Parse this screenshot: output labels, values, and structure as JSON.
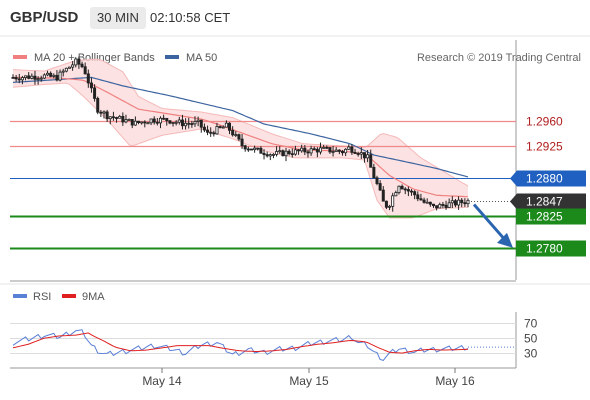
{
  "header": {
    "pair": "GBP/USD",
    "timeframe": "30 MIN",
    "time": "02:10:58 CET"
  },
  "legend": {
    "ma20": "MA 20 + Bollinger Bands",
    "ma50": "MA 50"
  },
  "credit": "Research © 2019 Trading Central",
  "rsi_legend": {
    "rsi": "RSI",
    "ma9": "9MA"
  },
  "colors": {
    "ma20": "#f08080",
    "ma50": "#3c64a0",
    "band": "#fbd8d8",
    "pivot": "#f08a8a",
    "support": "#1b8a1b",
    "last": "#333333",
    "ma50_tag": "#2060c0",
    "candle": "#222222",
    "rsi": "#5a7fd6",
    "ma9": "#e02020",
    "arrow": "#2b65b0"
  },
  "chart_data": [
    {
      "type": "candlestick",
      "ylim": [
        1.2735,
        1.3075
      ],
      "levels": [
        {
          "label": "1.2960",
          "value": 1.296,
          "kind": "pivot"
        },
        {
          "label": "1.2925",
          "value": 1.2925,
          "kind": "pivot"
        },
        {
          "label": "1.2880",
          "value": 1.288,
          "kind": "ma50"
        },
        {
          "label": "1.2847",
          "value": 1.2847,
          "kind": "last"
        },
        {
          "label": "1.2825",
          "value": 1.2825,
          "kind": "support"
        },
        {
          "label": "1.2780",
          "value": 1.278,
          "kind": "support"
        }
      ],
      "price_path": [
        [
          0,
          1.3022
        ],
        [
          10,
          1.3023
        ],
        [
          20,
          1.3024
        ],
        [
          28,
          1.3022
        ],
        [
          32,
          1.303
        ],
        [
          40,
          1.3044
        ],
        [
          45,
          1.3036
        ],
        [
          50,
          1.3003
        ],
        [
          54,
          1.2977
        ],
        [
          60,
          1.2968
        ],
        [
          70,
          1.2962
        ],
        [
          78,
          1.2957
        ],
        [
          88,
          1.2962
        ],
        [
          98,
          1.2962
        ],
        [
          108,
          1.2957
        ],
        [
          118,
          1.2957
        ],
        [
          124,
          1.2942
        ],
        [
          130,
          1.2948
        ],
        [
          136,
          1.2953
        ],
        [
          140,
          1.2943
        ],
        [
          146,
          1.2926
        ],
        [
          156,
          1.2918
        ],
        [
          166,
          1.2913
        ],
        [
          176,
          1.2916
        ],
        [
          186,
          1.2918
        ],
        [
          196,
          1.292
        ],
        [
          206,
          1.2918
        ],
        [
          210,
          1.2917
        ],
        [
          214,
          1.2922
        ],
        [
          220,
          1.2917
        ],
        [
          226,
          1.2908
        ],
        [
          229,
          1.2887
        ],
        [
          233,
          1.2865
        ],
        [
          236,
          1.2845
        ],
        [
          239,
          1.2838
        ],
        [
          242,
          1.2854
        ],
        [
          246,
          1.2871
        ],
        [
          250,
          1.2864
        ],
        [
          256,
          1.2856
        ],
        [
          262,
          1.2845
        ],
        [
          268,
          1.2838
        ],
        [
          276,
          1.2842
        ],
        [
          283,
          1.2844
        ],
        [
          290,
          1.2847
        ]
      ],
      "ma20_path": [
        [
          0,
          1.3022
        ],
        [
          30,
          1.3021
        ],
        [
          45,
          1.3018
        ],
        [
          60,
          1.3001
        ],
        [
          80,
          1.2977
        ],
        [
          100,
          1.297
        ],
        [
          120,
          1.2963
        ],
        [
          130,
          1.2956
        ],
        [
          145,
          1.2944
        ],
        [
          165,
          1.2928
        ],
        [
          185,
          1.2919
        ],
        [
          210,
          1.2918
        ],
        [
          225,
          1.2913
        ],
        [
          240,
          1.2883
        ],
        [
          255,
          1.2864
        ],
        [
          270,
          1.2855
        ],
        [
          290,
          1.2853
        ]
      ],
      "upper_band": [
        [
          0,
          1.3033
        ],
        [
          20,
          1.3031
        ],
        [
          40,
          1.3046
        ],
        [
          55,
          1.3048
        ],
        [
          70,
          1.303
        ],
        [
          80,
          1.2995
        ],
        [
          95,
          1.2978
        ],
        [
          120,
          1.2973
        ],
        [
          140,
          1.2965
        ],
        [
          165,
          1.2942
        ],
        [
          185,
          1.2928
        ],
        [
          210,
          1.2925
        ],
        [
          225,
          1.2923
        ],
        [
          235,
          1.2943
        ],
        [
          245,
          1.2937
        ],
        [
          260,
          1.2908
        ],
        [
          275,
          1.2888
        ],
        [
          290,
          1.2868
        ]
      ],
      "lower_band": [
        [
          0,
          1.3008
        ],
        [
          20,
          1.3012
        ],
        [
          35,
          1.3014
        ],
        [
          45,
          1.2995
        ],
        [
          60,
          1.2962
        ],
        [
          75,
          1.2924
        ],
        [
          95,
          1.294
        ],
        [
          120,
          1.2949
        ],
        [
          140,
          1.2935
        ],
        [
          160,
          1.2918
        ],
        [
          180,
          1.2908
        ],
        [
          210,
          1.2908
        ],
        [
          224,
          1.2905
        ],
        [
          232,
          1.2848
        ],
        [
          240,
          1.2823
        ],
        [
          255,
          1.2823
        ],
        [
          270,
          1.2836
        ],
        [
          290,
          1.2838
        ]
      ],
      "ma50_path": [
        [
          0,
          1.3015
        ],
        [
          50,
          1.3022
        ],
        [
          70,
          1.301
        ],
        [
          100,
          1.2996
        ],
        [
          140,
          1.2975
        ],
        [
          160,
          1.2956
        ],
        [
          190,
          1.2942
        ],
        [
          215,
          1.2928
        ],
        [
          230,
          1.2912
        ],
        [
          245,
          1.2905
        ],
        [
          270,
          1.2893
        ],
        [
          290,
          1.2881
        ]
      ],
      "forecast_arrow": {
        "from": 1.2842,
        "to": 1.2782
      }
    },
    {
      "type": "line",
      "xlabels": [
        "May 14",
        "May 15",
        "May 16"
      ],
      "ylabels": [
        "70",
        "50",
        "30"
      ],
      "ylim": [
        10,
        85
      ],
      "series": [
        {
          "name": "RSI",
          "values": [
            [
              0,
              44
            ],
            [
              10,
              49
            ],
            [
              20,
              54
            ],
            [
              30,
              52
            ],
            [
              40,
              60
            ],
            [
              45,
              57
            ],
            [
              50,
              40
            ],
            [
              55,
              32
            ],
            [
              60,
              28
            ],
            [
              70,
              32
            ],
            [
              80,
              36
            ],
            [
              90,
              40
            ],
            [
              100,
              36
            ],
            [
              110,
              30
            ],
            [
              120,
              41
            ],
            [
              130,
              44
            ],
            [
              140,
              28
            ],
            [
              150,
              34
            ],
            [
              160,
              31
            ],
            [
              170,
              35
            ],
            [
              180,
              37
            ],
            [
              190,
              43
            ],
            [
              200,
              46
            ],
            [
              210,
              48
            ],
            [
              216,
              52
            ],
            [
              220,
              44
            ],
            [
              226,
              40
            ],
            [
              230,
              31
            ],
            [
              236,
              22
            ],
            [
              240,
              29
            ],
            [
              246,
              36
            ],
            [
              250,
              34
            ],
            [
              256,
              31
            ],
            [
              262,
              34
            ],
            [
              270,
              35
            ],
            [
              280,
              36
            ],
            [
              290,
              38
            ]
          ]
        },
        {
          "name": "9MA",
          "values": [
            [
              0,
              37
            ],
            [
              10,
              42
            ],
            [
              20,
              50
            ],
            [
              30,
              53
            ],
            [
              40,
              54
            ],
            [
              48,
              57
            ],
            [
              52,
              52
            ],
            [
              58,
              46
            ],
            [
              65,
              38
            ],
            [
              75,
              33
            ],
            [
              85,
              34
            ],
            [
              95,
              37
            ],
            [
              105,
              40
            ],
            [
              115,
              40
            ],
            [
              125,
              40
            ],
            [
              135,
              36
            ],
            [
              145,
              33
            ],
            [
              155,
              32
            ],
            [
              165,
              33
            ],
            [
              175,
              35
            ],
            [
              185,
              39
            ],
            [
              195,
              42
            ],
            [
              205,
              44
            ],
            [
              215,
              47
            ],
            [
              225,
              45
            ],
            [
              232,
              38
            ],
            [
              240,
              31
            ],
            [
              248,
              30
            ],
            [
              256,
              33
            ],
            [
              265,
              35
            ],
            [
              275,
              34
            ],
            [
              290,
              35
            ]
          ]
        }
      ]
    }
  ]
}
